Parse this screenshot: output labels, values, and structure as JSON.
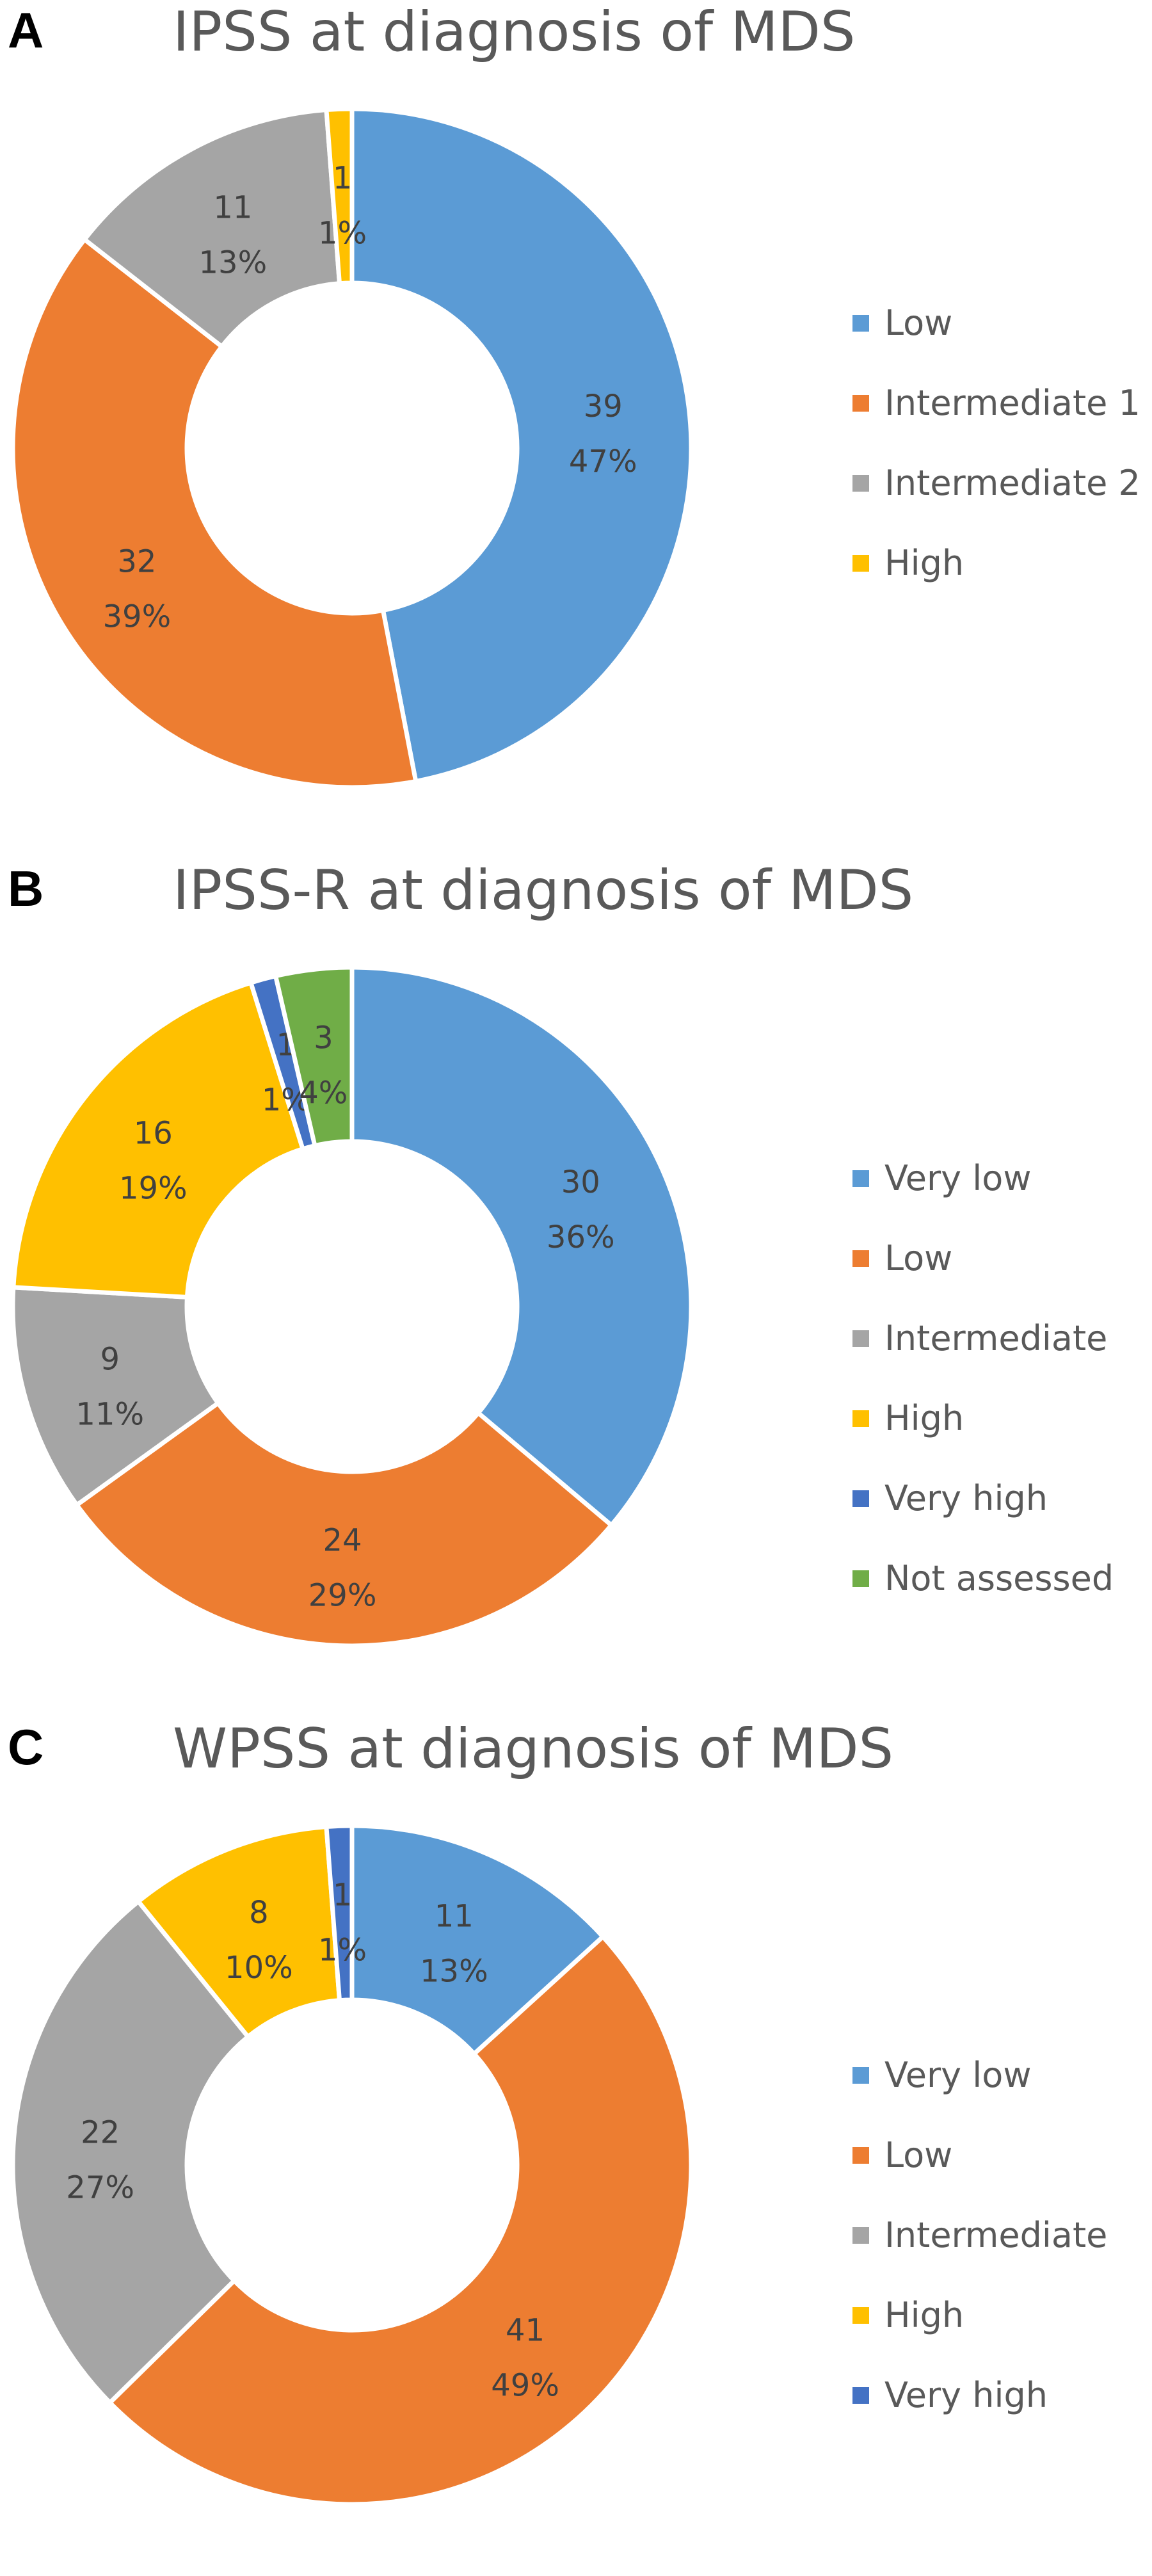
{
  "chart_data": [
    {
      "type": "pie",
      "panel_label": "A",
      "title": "IPSS at diagnosis of MDS",
      "categories": [
        "Low",
        "Intermediate 1",
        "Intermediate 2",
        "High"
      ],
      "values": [
        39,
        32,
        11,
        1
      ],
      "labels": [
        "39\n47%",
        "32\n39%",
        "11\n13%",
        "1\n1%"
      ],
      "colors": [
        "#5B9BD5",
        "#ED7D31",
        "#A5A5A5",
        "#FFC000"
      ],
      "legend_position": "right"
    },
    {
      "type": "pie",
      "panel_label": "B",
      "title": "IPSS-R at diagnosis of MDS",
      "categories": [
        "Very low",
        "Low",
        "Intermediate",
        "High",
        "Very high",
        "Not assessed"
      ],
      "values": [
        30,
        24,
        9,
        16,
        1,
        3
      ],
      "labels": [
        "30\n36%",
        "24\n29%",
        "9\n11%",
        "16\n19%",
        "1\n1%",
        "3\n4%"
      ],
      "colors": [
        "#5B9BD5",
        "#ED7D31",
        "#A5A5A5",
        "#FFC000",
        "#4472C4",
        "#70AD47"
      ],
      "legend_position": "right"
    },
    {
      "type": "pie",
      "panel_label": "C",
      "title": "WPSS at diagnosis of MDS",
      "categories": [
        "Very low",
        "Low",
        "Intermediate",
        "High",
        "Very high"
      ],
      "values": [
        11,
        41,
        22,
        8,
        1
      ],
      "labels": [
        "11\n13%",
        "41\n49%",
        "22\n27%",
        "8\n10%",
        "1\n1%"
      ],
      "colors": [
        "#5B9BD5",
        "#ED7D31",
        "#A5A5A5",
        "#FFC000",
        "#4472C4"
      ],
      "legend_position": "right"
    }
  ]
}
